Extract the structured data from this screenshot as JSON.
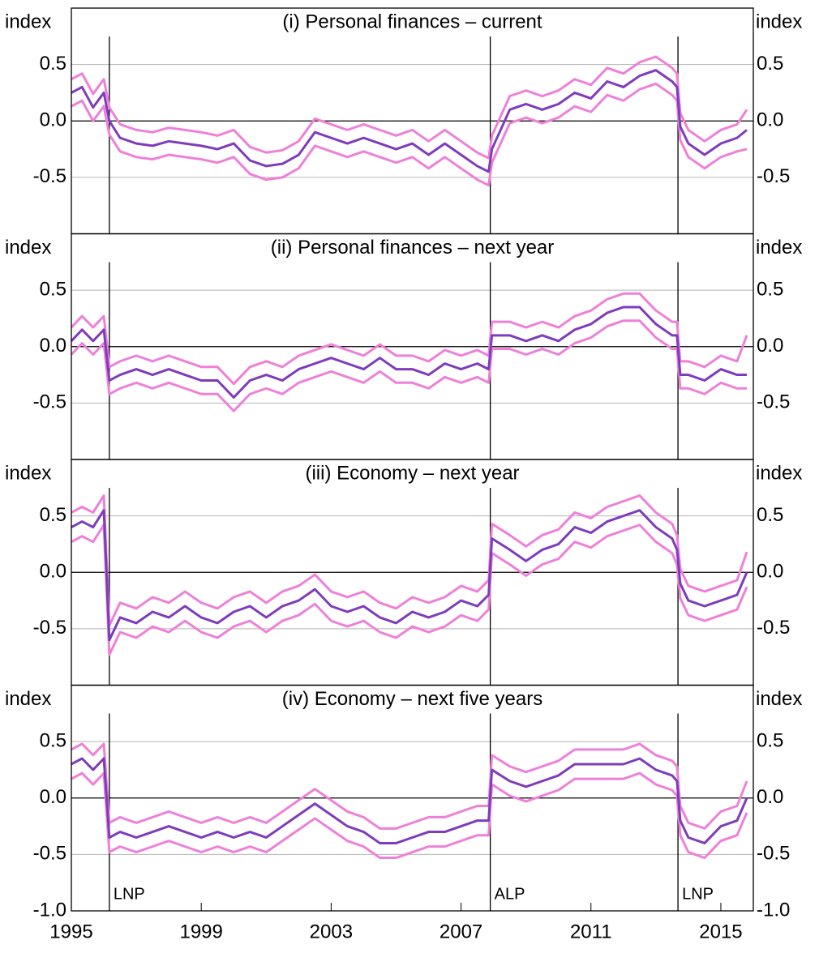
{
  "chart_data": [
    {
      "type": "line",
      "title": "(i) Personal finances – current",
      "ylabel": "index",
      "x": [
        1995.0,
        1995.33,
        1995.67,
        1996.0,
        1996.17,
        1996.5,
        1997.0,
        1997.5,
        1998.0,
        1998.5,
        1999.0,
        1999.5,
        2000.0,
        2000.5,
        2001.0,
        2001.5,
        2002.0,
        2002.5,
        2003.0,
        2003.5,
        2004.0,
        2004.5,
        2005.0,
        2005.5,
        2006.0,
        2006.5,
        2007.0,
        2007.5,
        2007.85,
        2007.95,
        2008.5,
        2009.0,
        2009.5,
        2010.0,
        2010.5,
        2011.0,
        2011.5,
        2012.0,
        2012.5,
        2013.0,
        2013.5,
        2013.65,
        2013.75,
        2014.0,
        2014.5,
        2015.0,
        2015.5,
        2015.8
      ],
      "xlim": [
        1995,
        2016
      ],
      "ylim": [
        -1,
        1
      ],
      "yticks": [
        0.5,
        {
          "value": 0,
          "label": "0.0"
        },
        -0.5
      ],
      "events_x": [
        1996.17,
        2007.9,
        2013.68
      ],
      "series": [
        {
          "color": "#ee80d8",
          "values": [
            0.37,
            0.42,
            0.24,
            0.37,
            0.12,
            -0.03,
            -0.08,
            -0.1,
            -0.06,
            -0.08,
            -0.1,
            -0.13,
            -0.08,
            -0.23,
            -0.28,
            -0.26,
            -0.18,
            0.02,
            -0.03,
            -0.08,
            -0.03,
            -0.08,
            -0.13,
            -0.08,
            -0.18,
            -0.08,
            -0.18,
            -0.28,
            -0.33,
            -0.13,
            0.22,
            0.27,
            0.22,
            0.27,
            0.37,
            0.32,
            0.47,
            0.42,
            0.52,
            0.57,
            0.47,
            0.42,
            0.07,
            -0.08,
            -0.18,
            -0.08,
            -0.03,
            0.1
          ]
        },
        {
          "color": "#ee80d8",
          "values": [
            0.13,
            0.18,
            0.0,
            0.13,
            -0.12,
            -0.27,
            -0.32,
            -0.34,
            -0.3,
            -0.32,
            -0.34,
            -0.37,
            -0.32,
            -0.47,
            -0.52,
            -0.5,
            -0.42,
            -0.22,
            -0.27,
            -0.32,
            -0.27,
            -0.32,
            -0.37,
            -0.32,
            -0.42,
            -0.32,
            -0.42,
            -0.52,
            -0.57,
            -0.37,
            -0.02,
            0.03,
            -0.02,
            0.03,
            0.13,
            0.08,
            0.23,
            0.18,
            0.28,
            0.33,
            0.23,
            0.18,
            -0.17,
            -0.32,
            -0.42,
            -0.32,
            -0.27,
            -0.25
          ]
        },
        {
          "color": "#7d3cbd",
          "values": [
            0.25,
            0.3,
            0.12,
            0.25,
            0.0,
            -0.15,
            -0.2,
            -0.22,
            -0.18,
            -0.2,
            -0.22,
            -0.25,
            -0.2,
            -0.35,
            -0.4,
            -0.38,
            -0.3,
            -0.1,
            -0.15,
            -0.2,
            -0.15,
            -0.2,
            -0.25,
            -0.2,
            -0.3,
            -0.2,
            -0.3,
            -0.4,
            -0.45,
            -0.25,
            0.1,
            0.15,
            0.1,
            0.15,
            0.25,
            0.2,
            0.35,
            0.3,
            0.4,
            0.45,
            0.35,
            0.3,
            -0.05,
            -0.2,
            -0.3,
            -0.2,
            -0.15,
            -0.08
          ]
        }
      ]
    },
    {
      "type": "line",
      "title": "(ii) Personal finances – next year",
      "ylabel": "index",
      "x": [
        1995.0,
        1995.33,
        1995.67,
        1996.0,
        1996.17,
        1996.5,
        1997.0,
        1997.5,
        1998.0,
        1998.5,
        1999.0,
        1999.5,
        2000.0,
        2000.5,
        2001.0,
        2001.5,
        2002.0,
        2002.5,
        2003.0,
        2003.5,
        2004.0,
        2004.5,
        2005.0,
        2005.5,
        2006.0,
        2006.5,
        2007.0,
        2007.5,
        2007.85,
        2007.95,
        2008.5,
        2009.0,
        2009.5,
        2010.0,
        2010.5,
        2011.0,
        2011.5,
        2012.0,
        2012.5,
        2013.0,
        2013.5,
        2013.65,
        2013.75,
        2014.0,
        2014.5,
        2015.0,
        2015.5,
        2015.8
      ],
      "xlim": [
        1995,
        2016
      ],
      "ylim": [
        -1,
        1
      ],
      "yticks": [
        0.5,
        {
          "value": 0,
          "label": "0.0"
        },
        -0.5
      ],
      "events_x": [
        1996.17,
        2007.9,
        2013.68
      ],
      "series": [
        {
          "color": "#ee80d8",
          "values": [
            0.17,
            0.27,
            0.17,
            0.27,
            -0.18,
            -0.13,
            -0.08,
            -0.13,
            -0.08,
            -0.13,
            -0.18,
            -0.18,
            -0.33,
            -0.18,
            -0.13,
            -0.18,
            -0.08,
            -0.03,
            0.02,
            -0.03,
            -0.08,
            0.02,
            -0.08,
            -0.08,
            -0.13,
            -0.03,
            -0.08,
            -0.03,
            -0.08,
            0.22,
            0.22,
            0.17,
            0.22,
            0.17,
            0.27,
            0.32,
            0.42,
            0.47,
            0.47,
            0.32,
            0.22,
            0.22,
            -0.13,
            -0.13,
            -0.18,
            -0.08,
            -0.13,
            0.1
          ]
        },
        {
          "color": "#ee80d8",
          "values": [
            -0.07,
            0.03,
            -0.07,
            0.03,
            -0.42,
            -0.37,
            -0.32,
            -0.37,
            -0.32,
            -0.37,
            -0.42,
            -0.42,
            -0.57,
            -0.42,
            -0.37,
            -0.42,
            -0.32,
            -0.27,
            -0.22,
            -0.27,
            -0.32,
            -0.22,
            -0.32,
            -0.32,
            -0.37,
            -0.27,
            -0.32,
            -0.27,
            -0.32,
            -0.02,
            -0.02,
            -0.07,
            -0.02,
            -0.07,
            0.03,
            0.08,
            0.18,
            0.23,
            0.23,
            0.08,
            -0.02,
            -0.02,
            -0.37,
            -0.37,
            -0.42,
            -0.32,
            -0.37,
            -0.37
          ]
        },
        {
          "color": "#7d3cbd",
          "values": [
            0.05,
            0.15,
            0.05,
            0.15,
            -0.3,
            -0.25,
            -0.2,
            -0.25,
            -0.2,
            -0.25,
            -0.3,
            -0.3,
            -0.45,
            -0.3,
            -0.25,
            -0.3,
            -0.2,
            -0.15,
            -0.1,
            -0.15,
            -0.2,
            -0.1,
            -0.2,
            -0.2,
            -0.25,
            -0.15,
            -0.2,
            -0.15,
            -0.2,
            0.1,
            0.1,
            0.05,
            0.1,
            0.05,
            0.15,
            0.2,
            0.3,
            0.35,
            0.35,
            0.2,
            0.1,
            0.1,
            -0.25,
            -0.25,
            -0.3,
            -0.2,
            -0.25,
            -0.25
          ]
        }
      ]
    },
    {
      "type": "line",
      "title": "(iii) Economy – next year",
      "ylabel": "index",
      "x": [
        1995.0,
        1995.33,
        1995.67,
        1996.0,
        1996.17,
        1996.5,
        1997.0,
        1997.5,
        1998.0,
        1998.5,
        1999.0,
        1999.5,
        2000.0,
        2000.5,
        2001.0,
        2001.5,
        2002.0,
        2002.5,
        2003.0,
        2003.5,
        2004.0,
        2004.5,
        2005.0,
        2005.5,
        2006.0,
        2006.5,
        2007.0,
        2007.5,
        2007.85,
        2007.95,
        2008.5,
        2009.0,
        2009.5,
        2010.0,
        2010.5,
        2011.0,
        2011.5,
        2012.0,
        2012.5,
        2013.0,
        2013.5,
        2013.65,
        2013.75,
        2014.0,
        2014.5,
        2015.0,
        2015.5,
        2015.8
      ],
      "xlim": [
        1995,
        2016
      ],
      "ylim": [
        -1,
        1
      ],
      "yticks": [
        0.5,
        {
          "value": 0,
          "label": "0.0"
        },
        -0.5
      ],
      "events_x": [
        1996.17,
        2007.9,
        2013.68
      ],
      "series": [
        {
          "color": "#ee80d8",
          "values": [
            0.53,
            0.58,
            0.53,
            0.68,
            -0.47,
            -0.27,
            -0.32,
            -0.22,
            -0.27,
            -0.17,
            -0.27,
            -0.32,
            -0.22,
            -0.17,
            -0.27,
            -0.17,
            -0.12,
            -0.02,
            -0.17,
            -0.22,
            -0.17,
            -0.27,
            -0.32,
            -0.22,
            -0.27,
            -0.22,
            -0.12,
            -0.17,
            -0.07,
            0.43,
            0.33,
            0.23,
            0.33,
            0.38,
            0.53,
            0.48,
            0.58,
            0.63,
            0.68,
            0.53,
            0.43,
            0.33,
            0.03,
            -0.12,
            -0.17,
            -0.12,
            -0.07,
            0.18
          ]
        },
        {
          "color": "#ee80d8",
          "values": [
            0.27,
            0.32,
            0.27,
            0.42,
            -0.73,
            -0.53,
            -0.58,
            -0.48,
            -0.53,
            -0.43,
            -0.53,
            -0.58,
            -0.48,
            -0.43,
            -0.53,
            -0.43,
            -0.38,
            -0.28,
            -0.43,
            -0.48,
            -0.43,
            -0.53,
            -0.58,
            -0.48,
            -0.53,
            -0.48,
            -0.38,
            -0.43,
            -0.33,
            0.17,
            0.07,
            -0.03,
            0.07,
            0.12,
            0.27,
            0.22,
            0.32,
            0.37,
            0.42,
            0.27,
            0.17,
            0.07,
            -0.23,
            -0.38,
            -0.43,
            -0.38,
            -0.33,
            -0.13
          ]
        },
        {
          "color": "#7d3cbd",
          "values": [
            0.4,
            0.45,
            0.4,
            0.55,
            -0.6,
            -0.4,
            -0.45,
            -0.35,
            -0.4,
            -0.3,
            -0.4,
            -0.45,
            -0.35,
            -0.3,
            -0.4,
            -0.3,
            -0.25,
            -0.15,
            -0.3,
            -0.35,
            -0.3,
            -0.4,
            -0.45,
            -0.35,
            -0.4,
            -0.35,
            -0.25,
            -0.3,
            -0.2,
            0.3,
            0.2,
            0.1,
            0.2,
            0.25,
            0.4,
            0.35,
            0.45,
            0.5,
            0.55,
            0.4,
            0.3,
            0.2,
            -0.1,
            -0.25,
            -0.3,
            -0.25,
            -0.2,
            0.0
          ]
        }
      ]
    },
    {
      "type": "line",
      "title": "(iv) Economy – next five years",
      "ylabel": "index",
      "x": [
        1995.0,
        1995.33,
        1995.67,
        1996.0,
        1996.17,
        1996.5,
        1997.0,
        1997.5,
        1998.0,
        1998.5,
        1999.0,
        1999.5,
        2000.0,
        2000.5,
        2001.0,
        2001.5,
        2002.0,
        2002.5,
        2003.0,
        2003.5,
        2004.0,
        2004.5,
        2005.0,
        2005.5,
        2006.0,
        2006.5,
        2007.0,
        2007.5,
        2007.85,
        2007.95,
        2008.5,
        2009.0,
        2009.5,
        2010.0,
        2010.5,
        2011.0,
        2011.5,
        2012.0,
        2012.5,
        2013.0,
        2013.5,
        2013.65,
        2013.75,
        2014.0,
        2014.5,
        2015.0,
        2015.5,
        2015.8
      ],
      "xlim": [
        1995,
        2016
      ],
      "ylim": [
        -1,
        1
      ],
      "yticks": [
        0.5,
        {
          "value": 0,
          "label": "0.0"
        },
        -0.5,
        {
          "value": -1,
          "label": "-1.0"
        }
      ],
      "xticks": [
        1995,
        1999,
        2003,
        2007,
        2011,
        2015
      ],
      "events_x": [
        1996.17,
        2007.9,
        2013.68
      ],
      "event_labels": [
        "LNP",
        "ALP",
        "LNP"
      ],
      "series": [
        {
          "color": "#ee80d8",
          "values": [
            0.43,
            0.48,
            0.38,
            0.48,
            -0.22,
            -0.17,
            -0.22,
            -0.17,
            -0.12,
            -0.17,
            -0.22,
            -0.17,
            -0.22,
            -0.17,
            -0.22,
            -0.12,
            -0.02,
            0.08,
            -0.02,
            -0.12,
            -0.17,
            -0.27,
            -0.27,
            -0.22,
            -0.17,
            -0.17,
            -0.12,
            -0.07,
            -0.07,
            0.38,
            0.28,
            0.23,
            0.28,
            0.33,
            0.43,
            0.43,
            0.43,
            0.43,
            0.48,
            0.38,
            0.33,
            0.28,
            -0.07,
            -0.22,
            -0.27,
            -0.12,
            -0.07,
            0.15
          ]
        },
        {
          "color": "#ee80d8",
          "values": [
            0.17,
            0.22,
            0.12,
            0.22,
            -0.48,
            -0.43,
            -0.48,
            -0.43,
            -0.38,
            -0.43,
            -0.48,
            -0.43,
            -0.48,
            -0.43,
            -0.48,
            -0.38,
            -0.28,
            -0.18,
            -0.28,
            -0.38,
            -0.43,
            -0.53,
            -0.53,
            -0.48,
            -0.43,
            -0.43,
            -0.38,
            -0.33,
            -0.33,
            0.12,
            0.02,
            -0.03,
            0.02,
            0.07,
            0.17,
            0.17,
            0.17,
            0.17,
            0.22,
            0.12,
            0.07,
            0.02,
            -0.33,
            -0.48,
            -0.53,
            -0.38,
            -0.33,
            -0.13
          ]
        },
        {
          "color": "#7d3cbd",
          "values": [
            0.3,
            0.35,
            0.25,
            0.35,
            -0.35,
            -0.3,
            -0.35,
            -0.3,
            -0.25,
            -0.3,
            -0.35,
            -0.3,
            -0.35,
            -0.3,
            -0.35,
            -0.25,
            -0.15,
            -0.05,
            -0.15,
            -0.25,
            -0.3,
            -0.4,
            -0.4,
            -0.35,
            -0.3,
            -0.3,
            -0.25,
            -0.2,
            -0.2,
            0.25,
            0.15,
            0.1,
            0.15,
            0.2,
            0.3,
            0.3,
            0.3,
            0.3,
            0.35,
            0.25,
            0.2,
            0.15,
            -0.2,
            -0.35,
            -0.4,
            -0.25,
            -0.2,
            0.0
          ]
        }
      ]
    }
  ]
}
